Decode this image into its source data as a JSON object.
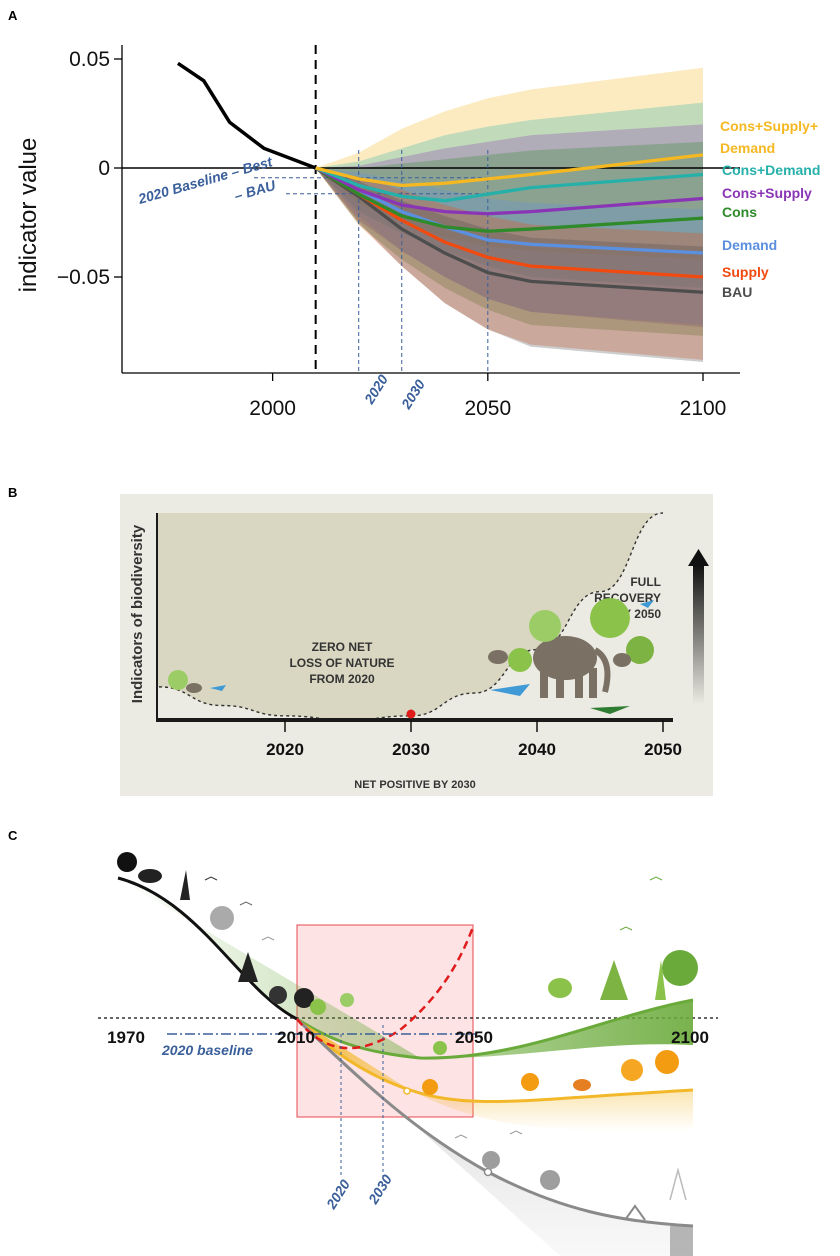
{
  "panels": {
    "a": "A",
    "b": "B",
    "c": "C"
  },
  "chart_data": [
    {
      "type": "line",
      "panel": "A",
      "ylabel": "indicator value",
      "xlabel": "",
      "x_ticks": [
        "2000",
        "2050",
        "2100"
      ],
      "y_ticks": [
        "0.05",
        "0",
        "−0.05"
      ],
      "ylim": [
        -0.09,
        0.057
      ],
      "xlim": [
        1970,
        2110
      ],
      "baseline_year": 2010,
      "historical": {
        "x": [
          1978,
          1984,
          1990,
          1998,
          2010
        ],
        "y": [
          0.048,
          0.04,
          0.021,
          0.009,
          0.0
        ]
      },
      "x": [
        2010,
        2020,
        2030,
        2040,
        2050,
        2060,
        2100
      ],
      "series": [
        {
          "name": "Cons+Supply+\nDemand",
          "label_lines": [
            "Cons+Supply+",
            "Demand"
          ],
          "color": "#f5b821",
          "values": [
            0,
            -0.005,
            -0.008,
            -0.007,
            -0.005,
            -0.003,
            0.006
          ],
          "band_upper": [
            0,
            0.007,
            0.018,
            0.026,
            0.032,
            0.036,
            0.046
          ],
          "band_lower": [
            0,
            -0.016,
            -0.025,
            -0.032,
            -0.036,
            -0.038,
            -0.042
          ]
        },
        {
          "name": "Cons+Demand",
          "label_lines": [
            "Cons+Demand"
          ],
          "color": "#25b0aa",
          "values": [
            0,
            -0.008,
            -0.013,
            -0.015,
            -0.012,
            -0.009,
            -0.003
          ],
          "band_upper": [
            0,
            0.003,
            0.009,
            0.015,
            0.019,
            0.022,
            0.03
          ],
          "band_lower": [
            0,
            -0.02,
            -0.03,
            -0.038,
            -0.045,
            -0.05,
            -0.055
          ]
        },
        {
          "name": "Cons+Supply",
          "label_lines": [
            "Cons+Supply"
          ],
          "color": "#8a35b5",
          "values": [
            0,
            -0.01,
            -0.017,
            -0.02,
            -0.021,
            -0.02,
            -0.014
          ],
          "band_upper": [
            0,
            0.001,
            0.005,
            0.009,
            0.012,
            0.015,
            0.02
          ],
          "band_lower": [
            0,
            -0.024,
            -0.038,
            -0.05,
            -0.06,
            -0.066,
            -0.073
          ]
        },
        {
          "name": "Cons",
          "label_lines": [
            "Cons"
          ],
          "color": "#2f8a2a",
          "values": [
            0,
            -0.012,
            -0.022,
            -0.027,
            -0.029,
            -0.028,
            -0.023
          ],
          "band_upper": [
            0,
            0.0,
            0.002,
            0.004,
            0.006,
            0.008,
            0.012
          ],
          "band_lower": [
            0,
            -0.026,
            -0.042,
            -0.055,
            -0.065,
            -0.072,
            -0.077
          ]
        },
        {
          "name": "Demand",
          "label_lines": [
            "Demand"
          ],
          "color": "#5b8fe0",
          "values": [
            0,
            -0.01,
            -0.02,
            -0.027,
            -0.033,
            -0.035,
            -0.039
          ],
          "band_upper": [
            0,
            -0.002,
            -0.006,
            -0.01,
            -0.014,
            -0.016,
            -0.019
          ],
          "band_lower": [
            0,
            -0.022,
            -0.038,
            -0.05,
            -0.06,
            -0.066,
            -0.072
          ]
        },
        {
          "name": "Supply",
          "label_lines": [
            "Supply"
          ],
          "color": "#f04a10",
          "values": [
            0,
            -0.012,
            -0.024,
            -0.034,
            -0.041,
            -0.045,
            -0.05
          ],
          "band_upper": [
            0,
            -0.004,
            -0.01,
            -0.017,
            -0.022,
            -0.026,
            -0.03
          ],
          "band_lower": [
            0,
            -0.026,
            -0.045,
            -0.062,
            -0.074,
            -0.081,
            -0.088
          ]
        },
        {
          "name": "BAU",
          "label_lines": [
            "BAU"
          ],
          "color": "#4d4d4d",
          "values": [
            0,
            -0.013,
            -0.028,
            -0.039,
            -0.048,
            -0.052,
            -0.057
          ],
          "band_upper": [
            0,
            -0.006,
            -0.015,
            -0.022,
            -0.028,
            -0.032,
            -0.036
          ],
          "band_lower": [
            0,
            -0.025,
            -0.045,
            -0.062,
            -0.074,
            -0.082,
            -0.089
          ]
        }
      ],
      "annotations": {
        "baseline_best": "2020 Baseline – Best",
        "baseline_bau": "– BAU",
        "year_2020": "2020",
        "year_2030": "2030"
      }
    },
    {
      "type": "line",
      "panel": "B",
      "ylabel": "Indicators of biodiversity",
      "xlabel": "NET POSITIVE BY 2030",
      "x_ticks": [
        "2020",
        "2030",
        "2040",
        "2050"
      ],
      "curve": {
        "x": [
          2010,
          2015,
          2020,
          2025,
          2030,
          2035,
          2040,
          2045,
          2050
        ],
        "y": [
          0.16,
          0.07,
          0.02,
          0.0,
          0.02,
          0.13,
          0.34,
          0.62,
          1.0
        ]
      },
      "marker": {
        "x": 2030,
        "color": "#e01b1b"
      },
      "annotations": {
        "zero_net": [
          "ZERO NET",
          "LOSS OF NATURE",
          "FROM 2020"
        ],
        "full_recovery": [
          "FULL",
          "RECOVERY",
          "BY 2050"
        ]
      }
    },
    {
      "type": "line",
      "panel": "C",
      "x_ticks": [
        "1970",
        "2010",
        "2050",
        "2100"
      ],
      "series_colors": {
        "recovery": "#6aaa3a",
        "stabilize": "#f2b82a",
        "decline": "#8a8a8a",
        "projection": "#e01b1b"
      },
      "annotations": {
        "baseline": "2020 baseline",
        "year_2020": "2020",
        "year_2030": "2030"
      }
    }
  ]
}
